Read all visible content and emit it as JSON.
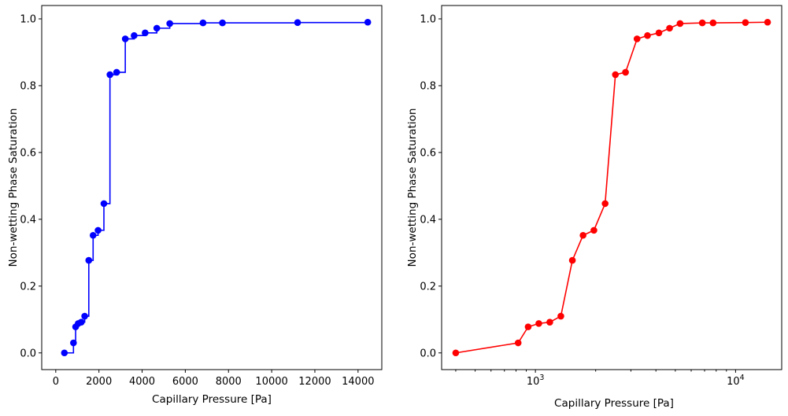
{
  "chart_data": [
    {
      "type": "line",
      "drawstyle": "steps-post",
      "markers": true,
      "color": "#0000ff",
      "xlabel": "Capillary Pressure [Pa]",
      "ylabel": "Non-wetting Phase Saturation",
      "xscale": "linear",
      "xlim": [
        -650,
        15100
      ],
      "ylim": [
        -0.05,
        1.04
      ],
      "xticks": [
        0,
        2000,
        4000,
        6000,
        8000,
        10000,
        12000,
        14000
      ],
      "xtick_labels": [
        "0",
        "2000",
        "4000",
        "6000",
        "8000",
        "10000",
        "12000",
        "14000"
      ],
      "yticks": [
        0.0,
        0.2,
        0.4,
        0.6,
        0.8,
        1.0
      ],
      "ytick_labels": [
        "0.0",
        "0.2",
        "0.4",
        "0.6",
        "0.8",
        "1.0"
      ],
      "grid": false,
      "series": [
        {
          "x": [
            400,
            820,
            920,
            1040,
            1180,
            1340,
            1530,
            1730,
            1960,
            2230,
            2510,
            2820,
            3220,
            3630,
            4140,
            4680,
            5280,
            6820,
            7720,
            11200,
            14450
          ],
          "y": [
            0.0,
            0.03,
            0.078,
            0.088,
            0.092,
            0.11,
            0.277,
            0.352,
            0.367,
            0.447,
            0.833,
            0.84,
            0.94,
            0.95,
            0.958,
            0.972,
            0.986,
            0.988,
            0.988,
            0.989,
            0.99
          ]
        }
      ]
    },
    {
      "type": "line",
      "markers": true,
      "color": "#ff0000",
      "xlabel": "Capillary Pressure [Pa]",
      "ylabel": "Non-wetting Phase Saturation",
      "xscale": "log",
      "xlim": [
        340,
        17000
      ],
      "ylim": [
        -0.05,
        1.04
      ],
      "xticks": [
        1000,
        10000
      ],
      "xtick_labels": [
        "10^3",
        "10^4"
      ],
      "yticks": [
        0.0,
        0.2,
        0.4,
        0.6,
        0.8,
        1.0
      ],
      "ytick_labels": [
        "0.0",
        "0.2",
        "0.4",
        "0.6",
        "0.8",
        "1.0"
      ],
      "grid": false,
      "series": [
        {
          "x": [
            400,
            820,
            920,
            1040,
            1180,
            1340,
            1530,
            1730,
            1960,
            2230,
            2510,
            2820,
            3220,
            3630,
            4140,
            4680,
            5280,
            6820,
            7720,
            11200,
            14450
          ],
          "y": [
            0.0,
            0.03,
            0.078,
            0.088,
            0.092,
            0.11,
            0.277,
            0.352,
            0.367,
            0.447,
            0.833,
            0.84,
            0.94,
            0.95,
            0.958,
            0.972,
            0.986,
            0.988,
            0.988,
            0.989,
            0.99
          ]
        }
      ]
    }
  ]
}
